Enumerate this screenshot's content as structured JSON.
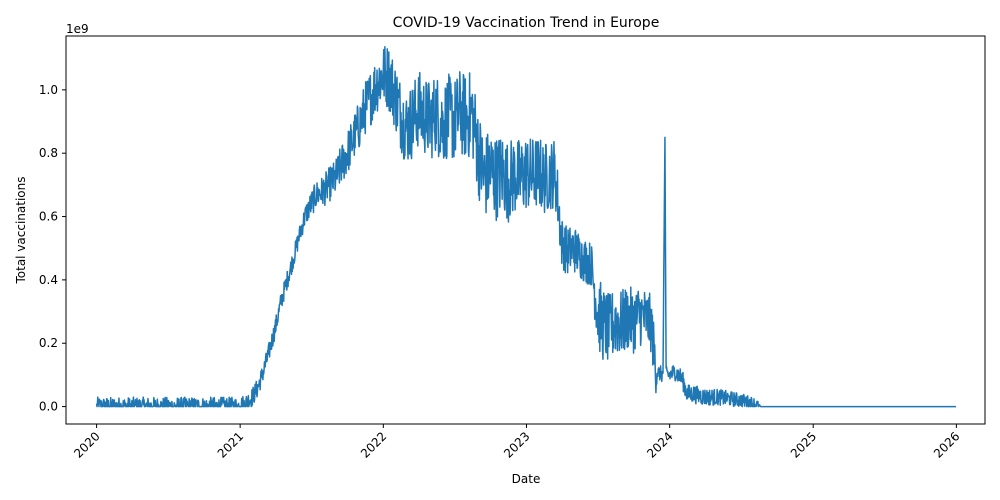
{
  "chart_data": {
    "type": "line",
    "title": "COVID-19 Vaccination Trend in Europe",
    "xlabel": "Date",
    "ylabel": "Total vaccinations",
    "y_offset_label": "1e9",
    "xlim": [
      "2019-10-15",
      "2026-03-15"
    ],
    "ylim": [
      -0.055,
      1.17
    ],
    "x_ticks": [
      "2020",
      "2021",
      "2022",
      "2023",
      "2024",
      "2025",
      "2026"
    ],
    "y_ticks": [
      "0.0",
      "0.2",
      "0.4",
      "0.6",
      "0.8",
      "1.0"
    ],
    "grid": false,
    "legend": "none",
    "line_color": "#1f77b4",
    "series": [
      {
        "points": [
          [
            "2020-01-01",
            0.0
          ],
          [
            "2020-12-27",
            0.0
          ],
          [
            "2021-01-15",
            0.01
          ],
          [
            "2021-02-01",
            0.03
          ],
          [
            "2021-02-15",
            0.06
          ],
          [
            "2021-03-01",
            0.11
          ],
          [
            "2021-03-15",
            0.17
          ],
          [
            "2021-04-01",
            0.25
          ],
          [
            "2021-04-15",
            0.33
          ],
          [
            "2021-05-01",
            0.4
          ],
          [
            "2021-05-15",
            0.46
          ],
          [
            "2021-06-01",
            0.54
          ],
          [
            "2021-06-15",
            0.6
          ],
          [
            "2021-07-01",
            0.64
          ],
          [
            "2021-07-15",
            0.67
          ],
          [
            "2021-08-01",
            0.68
          ],
          [
            "2021-08-15",
            0.7
          ],
          [
            "2021-09-01",
            0.72
          ],
          [
            "2021-09-15",
            0.76
          ],
          [
            "2021-10-01",
            0.8
          ],
          [
            "2021-10-15",
            0.84
          ],
          [
            "2021-11-01",
            0.89
          ],
          [
            "2021-11-15",
            0.94
          ],
          [
            "2021-12-01",
            0.98
          ],
          [
            "2021-12-15",
            1.02
          ],
          [
            "2022-01-01",
            1.05
          ],
          [
            "2022-01-15",
            1.04
          ],
          [
            "2022-02-01",
            0.98
          ],
          [
            "2022-02-15",
            0.92
          ],
          [
            "2022-03-01",
            0.88
          ],
          [
            "2022-03-15",
            0.9
          ],
          [
            "2022-04-01",
            0.94
          ],
          [
            "2022-04-15",
            0.92
          ],
          [
            "2022-05-01",
            0.9
          ],
          [
            "2022-05-15",
            0.93
          ],
          [
            "2022-06-01",
            0.89
          ],
          [
            "2022-06-15",
            0.92
          ],
          [
            "2022-07-01",
            0.9
          ],
          [
            "2022-07-15",
            0.93
          ],
          [
            "2022-08-01",
            0.91
          ],
          [
            "2022-08-15",
            0.93
          ],
          [
            "2022-09-01",
            0.8
          ],
          [
            "2022-09-15",
            0.72
          ],
          [
            "2022-10-01",
            0.75
          ],
          [
            "2022-10-15",
            0.72
          ],
          [
            "2022-11-01",
            0.74
          ],
          [
            "2022-11-15",
            0.71
          ],
          [
            "2022-12-01",
            0.73
          ],
          [
            "2022-12-15",
            0.72
          ],
          [
            "2023-01-01",
            0.74
          ],
          [
            "2023-01-15",
            0.73
          ],
          [
            "2023-02-01",
            0.74
          ],
          [
            "2023-02-15",
            0.72
          ],
          [
            "2023-03-01",
            0.73
          ],
          [
            "2023-03-15",
            0.74
          ],
          [
            "2023-04-01",
            0.52
          ],
          [
            "2023-04-15",
            0.49
          ],
          [
            "2023-05-01",
            0.5
          ],
          [
            "2023-05-15",
            0.48
          ],
          [
            "2023-06-01",
            0.46
          ],
          [
            "2023-06-15",
            0.45
          ],
          [
            "2023-07-01",
            0.3
          ],
          [
            "2023-07-15",
            0.26
          ],
          [
            "2023-08-01",
            0.24
          ],
          [
            "2023-08-15",
            0.27
          ],
          [
            "2023-09-01",
            0.26
          ],
          [
            "2023-09-15",
            0.28
          ],
          [
            "2023-10-01",
            0.27
          ],
          [
            "2023-10-15",
            0.29
          ],
          [
            "2023-11-01",
            0.28
          ],
          [
            "2023-11-15",
            0.26
          ],
          [
            "2023-11-27",
            0.11
          ],
          [
            "2023-12-15",
            0.1
          ],
          [
            "2023-12-20",
            0.85
          ],
          [
            "2023-12-23",
            0.1
          ],
          [
            "2024-01-01",
            0.1
          ],
          [
            "2024-01-15",
            0.11
          ],
          [
            "2024-02-01",
            0.09
          ],
          [
            "2024-02-15",
            0.04
          ],
          [
            "2024-03-01",
            0.04
          ],
          [
            "2024-04-01",
            0.03
          ],
          [
            "2024-05-01",
            0.03
          ],
          [
            "2024-06-01",
            0.025
          ],
          [
            "2024-07-01",
            0.02
          ],
          [
            "2024-08-01",
            0.01
          ],
          [
            "2024-08-20",
            0.0
          ],
          [
            "2025-12-31",
            0.0
          ]
        ],
        "noise": [
          [
            "2021-06-01",
            0.03
          ],
          [
            "2021-09-01",
            0.06
          ],
          [
            "2021-12-01",
            0.09
          ],
          [
            "2022-03-01",
            0.12
          ],
          [
            "2022-08-15",
            0.14
          ],
          [
            "2022-09-10",
            0.14
          ],
          [
            "2023-03-15",
            0.11
          ],
          [
            "2023-04-01",
            0.08
          ],
          [
            "2023-06-15",
            0.07
          ],
          [
            "2023-07-05",
            0.12
          ],
          [
            "2023-11-25",
            0.09
          ],
          [
            "2023-12-01",
            0.025
          ],
          [
            "2024-02-15",
            0.03
          ],
          [
            "2024-08-10",
            0.02
          ],
          [
            "2024-08-20",
            0.0
          ]
        ]
      }
    ]
  }
}
